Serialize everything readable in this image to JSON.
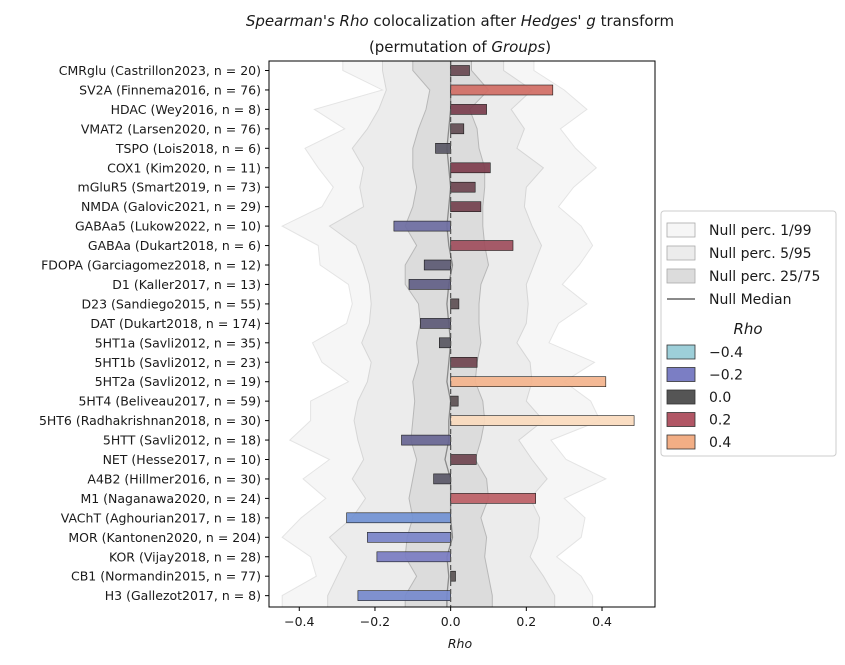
{
  "chart_data": {
    "type": "bar",
    "orientation": "horizontal",
    "title": {
      "line1": {
        "a": "Spearman's Rho",
        "b": " colocalization after ",
        "c": "Hedges' g",
        "d": " transform"
      },
      "line2": {
        "a": "(permutation of ",
        "b": "Groups",
        "c": ")"
      }
    },
    "xlabel": "Rho",
    "ylabel": "",
    "xlim": [
      -0.48,
      0.54
    ],
    "xticks": [
      -0.4,
      -0.2,
      0.0,
      0.2,
      0.4
    ],
    "xtick_labels": [
      "−0.4",
      "−0.2",
      "0.0",
      "0.2",
      "0.4"
    ],
    "grid": false,
    "legend_position": "right-outside",
    "categories": [
      "CMRglu (Castrillon2023, n = 20)",
      "SV2A (Finnema2016, n = 76)",
      "HDAC (Wey2016, n = 8)",
      "VMAT2 (Larsen2020, n = 76)",
      "TSPO (Lois2018, n = 6)",
      "COX1 (Kim2020, n = 11)",
      "mGluR5 (Smart2019, n = 73)",
      "NMDA (Galovic2021, n = 29)",
      "GABAa5 (Lukow2022, n = 10)",
      "GABAa (Dukart2018, n = 6)",
      "FDOPA (Garciagomez2018, n = 12)",
      "D1 (Kaller2017, n = 13)",
      "D23 (Sandiego2015, n = 55)",
      "DAT (Dukart2018, n = 174)",
      "5HT1a (Savli2012, n = 35)",
      "5HT1b (Savli2012, n = 23)",
      "5HT2a (Savli2012, n = 19)",
      "5HT4 (Beliveau2017, n = 59)",
      "5HT6 (Radhakrishnan2018, n = 30)",
      "5HTT (Savli2012, n = 18)",
      "NET (Hesse2017, n = 10)",
      "A4B2 (Hillmer2016, n = 30)",
      "M1 (Naganawa2020, n = 24)",
      "VAChT (Aghourian2017, n = 18)",
      "MOR (Kantonen2020, n = 204)",
      "KOR (Vijay2018, n = 28)",
      "CB1 (Normandin2015, n = 77)",
      "H3 (Gallezot2017, n = 8)"
    ],
    "values": [
      0.05,
      0.27,
      0.095,
      0.035,
      -0.04,
      0.105,
      0.065,
      0.08,
      -0.15,
      0.165,
      -0.07,
      -0.11,
      0.022,
      -0.08,
      -0.03,
      0.07,
      0.41,
      0.02,
      0.485,
      -0.13,
      0.068,
      -0.045,
      0.225,
      -0.275,
      -0.22,
      -0.195,
      0.013,
      -0.245
    ],
    "null_bands": {
      "p1": [
        -0.285,
        -0.18,
        -0.36,
        -0.28,
        -0.385,
        -0.35,
        -0.31,
        -0.34,
        -0.445,
        -0.35,
        -0.345,
        -0.27,
        -0.26,
        -0.275,
        -0.365,
        -0.34,
        -0.27,
        -0.37,
        -0.37,
        -0.425,
        -0.32,
        -0.39,
        -0.33,
        -0.395,
        -0.445,
        -0.37,
        -0.355,
        -0.445
      ],
      "p99": [
        0.22,
        0.3,
        0.36,
        0.29,
        0.33,
        0.385,
        0.325,
        0.285,
        0.345,
        0.375,
        0.34,
        0.295,
        0.36,
        0.285,
        0.26,
        0.38,
        0.3,
        0.37,
        0.395,
        0.265,
        0.305,
        0.41,
        0.3,
        0.355,
        0.345,
        0.28,
        0.345,
        0.375
      ],
      "p5": [
        -0.18,
        -0.17,
        -0.19,
        -0.22,
        -0.26,
        -0.23,
        -0.24,
        -0.23,
        -0.32,
        -0.25,
        -0.23,
        -0.215,
        -0.21,
        -0.215,
        -0.235,
        -0.21,
        -0.22,
        -0.245,
        -0.255,
        -0.245,
        -0.23,
        -0.26,
        -0.225,
        -0.26,
        -0.32,
        -0.275,
        -0.3,
        -0.325
      ],
      "p95": [
        0.14,
        0.215,
        0.16,
        0.195,
        0.175,
        0.245,
        0.2,
        0.195,
        0.215,
        0.24,
        0.22,
        0.2,
        0.205,
        0.2,
        0.175,
        0.21,
        0.215,
        0.2,
        0.245,
        0.18,
        0.215,
        0.255,
        0.21,
        0.235,
        0.23,
        0.21,
        0.245,
        0.275
      ],
      "p25": [
        -0.1,
        -0.055,
        -0.065,
        -0.085,
        -0.1,
        -0.1,
        -0.09,
        -0.1,
        -0.12,
        -0.09,
        -0.12,
        -0.12,
        -0.085,
        -0.08,
        -0.09,
        -0.085,
        -0.1,
        -0.095,
        -0.1,
        -0.105,
        -0.09,
        -0.1,
        -0.11,
        -0.1,
        -0.115,
        -0.12,
        -0.09,
        -0.12
      ],
      "p75": [
        0.055,
        0.1,
        0.05,
        0.07,
        0.075,
        0.09,
        0.09,
        0.085,
        0.085,
        0.09,
        0.1,
        0.08,
        0.075,
        0.075,
        0.08,
        0.07,
        0.065,
        0.085,
        0.09,
        0.08,
        0.065,
        0.095,
        0.1,
        0.08,
        0.095,
        0.09,
        0.1,
        0.11
      ],
      "median": [
        0.0,
        0.0,
        0.0,
        -0.005,
        -0.01,
        -0.005,
        0.0,
        -0.005,
        -0.01,
        -0.005,
        0.005,
        -0.005,
        -0.01,
        -0.005,
        0.0,
        -0.005,
        -0.01,
        0.0,
        -0.005,
        -0.005,
        -0.015,
        0.0,
        0.0,
        0.0,
        0.005,
        -0.01,
        -0.005,
        -0.01
      ]
    },
    "colors": {
      "band_p1_99": "#f6f6f6",
      "band_p5_95": "#ececec",
      "band_p25_75": "#dcdcdc",
      "band_edge": "#b8b8b8",
      "median_line": "#8a8a8a",
      "zero_line": "#555555",
      "bar_edge": "#1a1a1a"
    },
    "colormap": [
      {
        "v": -0.4,
        "color": "#9dcfd9"
      },
      {
        "v": -0.3,
        "color": "#6d97d6"
      },
      {
        "v": -0.2,
        "color": "#7b7ec4"
      },
      {
        "v": -0.1,
        "color": "#5e5a7e"
      },
      {
        "v": 0.0,
        "color": "#555555"
      },
      {
        "v": 0.1,
        "color": "#7a3b4b"
      },
      {
        "v": 0.2,
        "color": "#b15665"
      },
      {
        "v": 0.3,
        "color": "#dd7664"
      },
      {
        "v": 0.4,
        "color": "#f2ae85"
      },
      {
        "v": 0.5,
        "color": "#fbe2c7"
      }
    ],
    "legend": {
      "null_items": [
        {
          "label": "Null perc. 1/99",
          "kind": "band",
          "fill": "#f6f6f6"
        },
        {
          "label": "Null perc. 5/95",
          "kind": "band",
          "fill": "#ececec"
        },
        {
          "label": "Null perc. 25/75",
          "kind": "band",
          "fill": "#dcdcdc"
        },
        {
          "label": "Null Median",
          "kind": "line",
          "fill": "#8a8a8a"
        }
      ],
      "rho_title": "Rho",
      "rho_items": [
        {
          "label": "−0.4",
          "fill": "#9dcfd9"
        },
        {
          "label": "−0.2",
          "fill": "#7b7ec4"
        },
        {
          "label": "0.0",
          "fill": "#555555"
        },
        {
          "label": "0.2",
          "fill": "#b15665"
        },
        {
          "label": "0.4",
          "fill": "#f2ae85"
        }
      ]
    }
  }
}
